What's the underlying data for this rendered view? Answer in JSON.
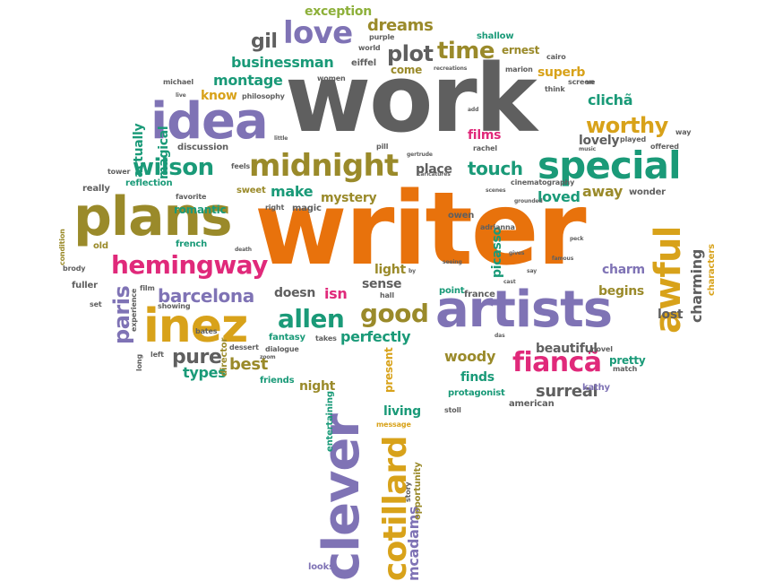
{
  "palette": {
    "gray": "#5f5f5f",
    "orange": "#e8720c",
    "purple": "#7f73b5",
    "green": "#1a9a78",
    "olive": "#9a8a2a",
    "magenta": "#e0297a",
    "gold": "#d8a21a",
    "brown": "#8f6a3a",
    "lime": "#8db03a"
  },
  "words": [
    {
      "text": "work",
      "color": "gray",
      "size": 104
    },
    {
      "text": "writer",
      "color": "orange",
      "size": 112
    },
    {
      "text": "plans",
      "color": "olive",
      "size": 60
    },
    {
      "text": "idea",
      "color": "purple",
      "size": 56
    },
    {
      "text": "artists",
      "color": "purple",
      "size": 56
    },
    {
      "text": "inez",
      "color": "gold",
      "size": 52
    },
    {
      "text": "clever",
      "color": "purple",
      "size": 56
    },
    {
      "text": "special",
      "color": "green",
      "size": 42
    },
    {
      "text": "awful",
      "color": "gold",
      "size": 40
    },
    {
      "text": "midnight",
      "color": "olive",
      "size": 34
    },
    {
      "text": "cotillard",
      "color": "gold",
      "size": 36
    },
    {
      "text": "love",
      "color": "purple",
      "size": 34
    },
    {
      "text": "hemingway",
      "color": "magenta",
      "size": 28
    },
    {
      "text": "fiancã",
      "color": "magenta",
      "size": 30
    },
    {
      "text": "wilson",
      "color": "green",
      "size": 26
    },
    {
      "text": "allen",
      "color": "green",
      "size": 28
    },
    {
      "text": "good",
      "color": "olive",
      "size": 28
    },
    {
      "text": "worthy",
      "color": "gold",
      "size": 24
    },
    {
      "text": "time",
      "color": "olive",
      "size": 26
    },
    {
      "text": "plot",
      "color": "gray",
      "size": 24
    },
    {
      "text": "touch",
      "color": "green",
      "size": 20
    },
    {
      "text": "barcelona",
      "color": "purple",
      "size": 20
    },
    {
      "text": "gil",
      "color": "gray",
      "size": 22
    },
    {
      "text": "pure",
      "color": "gray",
      "size": 22
    },
    {
      "text": "surreal",
      "color": "gray",
      "size": 18
    },
    {
      "text": "businessman",
      "color": "green",
      "size": 16
    },
    {
      "text": "montage",
      "color": "green",
      "size": 16
    },
    {
      "text": "paris",
      "color": "purple",
      "size": 24
    },
    {
      "text": "best",
      "color": "olive",
      "size": 18
    },
    {
      "text": "types",
      "color": "green",
      "size": 16
    },
    {
      "text": "charming",
      "color": "gray",
      "size": 16
    },
    {
      "text": "woody",
      "color": "olive",
      "size": 16
    },
    {
      "text": "mcadams",
      "color": "purple",
      "size": 16
    },
    {
      "text": "dreams",
      "color": "olive",
      "size": 18
    },
    {
      "text": "exception",
      "color": "lime",
      "size": 14
    },
    {
      "text": "place",
      "color": "gray",
      "size": 14
    },
    {
      "text": "make",
      "color": "green",
      "size": 16
    },
    {
      "text": "mystery",
      "color": "olive",
      "size": 14
    },
    {
      "text": "loved",
      "color": "green",
      "size": 16
    },
    {
      "text": "away",
      "color": "olive",
      "size": 16
    },
    {
      "text": "lovely",
      "color": "gray",
      "size": 14
    },
    {
      "text": "films",
      "color": "magenta",
      "size": 14
    },
    {
      "text": "clichã",
      "color": "green",
      "size": 16
    },
    {
      "text": "superb",
      "color": "gold",
      "size": 14
    },
    {
      "text": "know",
      "color": "gold",
      "size": 14
    },
    {
      "text": "actually",
      "color": "green",
      "size": 14
    },
    {
      "text": "magical",
      "color": "green",
      "size": 14
    },
    {
      "text": "doesn",
      "color": "gray",
      "size": 14
    },
    {
      "text": "isn",
      "color": "magenta",
      "size": 16
    },
    {
      "text": "sense",
      "color": "gray",
      "size": 14
    },
    {
      "text": "light",
      "color": "olive",
      "size": 14
    },
    {
      "text": "perfectly",
      "color": "green",
      "size": 16
    },
    {
      "text": "charm",
      "color": "purple",
      "size": 14
    },
    {
      "text": "begins",
      "color": "olive",
      "size": 14
    },
    {
      "text": "lost",
      "color": "gray",
      "size": 14
    },
    {
      "text": "beautiful",
      "color": "gray",
      "size": 14
    },
    {
      "text": "finds",
      "color": "green",
      "size": 14
    },
    {
      "text": "night",
      "color": "olive",
      "size": 14
    },
    {
      "text": "living",
      "color": "green",
      "size": 14
    },
    {
      "text": "present",
      "color": "gold",
      "size": 12
    },
    {
      "text": "picasso",
      "color": "green",
      "size": 14
    },
    {
      "text": "pretty",
      "color": "green",
      "size": 12
    },
    {
      "text": "romantic",
      "color": "green",
      "size": 12
    },
    {
      "text": "come",
      "color": "olive",
      "size": 12
    },
    {
      "text": "director",
      "color": "olive",
      "size": 10
    },
    {
      "text": "ernest",
      "color": "olive",
      "size": 12
    },
    {
      "text": "friends",
      "color": "green",
      "size": 10
    },
    {
      "text": "american",
      "color": "gray",
      "size": 10
    },
    {
      "text": "protagonist",
      "color": "green",
      "size": 10
    },
    {
      "text": "kathy",
      "color": "purple",
      "size": 10
    },
    {
      "text": "looks",
      "color": "purple",
      "size": 10
    },
    {
      "text": "fantasy",
      "color": "green",
      "size": 10
    },
    {
      "text": "entertaining",
      "color": "green",
      "size": 10
    },
    {
      "text": "opportunity",
      "color": "olive",
      "size": 10
    },
    {
      "text": "message",
      "color": "gold",
      "size": 8
    },
    {
      "text": "story",
      "color": "gray",
      "size": 8
    },
    {
      "text": "stoll",
      "color": "gray",
      "size": 8
    },
    {
      "text": "shallow",
      "color": "green",
      "size": 10
    },
    {
      "text": "eiffel",
      "color": "gray",
      "size": 10
    },
    {
      "text": "michael",
      "color": "gray",
      "size": 8
    },
    {
      "text": "women",
      "color": "gray",
      "size": 8
    },
    {
      "text": "philosophy",
      "color": "gray",
      "size": 8
    },
    {
      "text": "discussion",
      "color": "gray",
      "size": 10
    },
    {
      "text": "reflection",
      "color": "green",
      "size": 10
    },
    {
      "text": "really",
      "color": "gray",
      "size": 10
    },
    {
      "text": "tower",
      "color": "gray",
      "size": 8
    },
    {
      "text": "sweet",
      "color": "olive",
      "size": 10
    },
    {
      "text": "magic",
      "color": "gray",
      "size": 10
    },
    {
      "text": "right",
      "color": "gray",
      "size": 8
    },
    {
      "text": "favorite",
      "color": "gray",
      "size": 8
    },
    {
      "text": "condition",
      "color": "olive",
      "size": 8
    },
    {
      "text": "old",
      "color": "olive",
      "size": 10
    },
    {
      "text": "french",
      "color": "green",
      "size": 10
    },
    {
      "text": "brody",
      "color": "gray",
      "size": 8
    },
    {
      "text": "fuller",
      "color": "gray",
      "size": 10
    },
    {
      "text": "set",
      "color": "gray",
      "size": 8
    },
    {
      "text": "film",
      "color": "gray",
      "size": 8
    },
    {
      "text": "experience",
      "color": "gray",
      "size": 8
    },
    {
      "text": "showing",
      "color": "gray",
      "size": 8
    },
    {
      "text": "bates",
      "color": "gray",
      "size": 8
    },
    {
      "text": "left",
      "color": "gray",
      "size": 8
    },
    {
      "text": "long",
      "color": "gray",
      "size": 8
    },
    {
      "text": "dessert",
      "color": "gray",
      "size": 8
    },
    {
      "text": "dialogue",
      "color": "gray",
      "size": 8
    },
    {
      "text": "zoom",
      "color": "gray",
      "size": 6
    },
    {
      "text": "takes",
      "color": "gray",
      "size": 8
    },
    {
      "text": "hall",
      "color": "gray",
      "size": 8
    },
    {
      "text": "point",
      "color": "green",
      "size": 10
    },
    {
      "text": "france",
      "color": "gray",
      "size": 10
    },
    {
      "text": "owen",
      "color": "gray",
      "size": 10
    },
    {
      "text": "adrianna",
      "color": "gray",
      "size": 8
    },
    {
      "text": "scenes",
      "color": "gray",
      "size": 6
    },
    {
      "text": "grounded",
      "color": "gray",
      "size": 6
    },
    {
      "text": "cinematography",
      "color": "gray",
      "size": 8
    },
    {
      "text": "wonder",
      "color": "gray",
      "size": 10
    },
    {
      "text": "famous",
      "color": "gray",
      "size": 6
    },
    {
      "text": "novel",
      "color": "gray",
      "size": 8
    },
    {
      "text": "match",
      "color": "gray",
      "size": 8
    },
    {
      "text": "characters",
      "color": "gold",
      "size": 10
    },
    {
      "text": "think",
      "color": "gray",
      "size": 8
    },
    {
      "text": "screen",
      "color": "gray",
      "size": 8
    },
    {
      "text": "cairo",
      "color": "gray",
      "size": 8
    },
    {
      "text": "marion",
      "color": "gray",
      "size": 8
    },
    {
      "text": "recreations",
      "color": "gray",
      "size": 6
    },
    {
      "text": "purple",
      "color": "gray",
      "size": 8
    },
    {
      "text": "world",
      "color": "gray",
      "size": 8
    },
    {
      "text": "played",
      "color": "gray",
      "size": 8
    },
    {
      "text": "offered",
      "color": "gray",
      "size": 8
    },
    {
      "text": "way",
      "color": "gray",
      "size": 8
    },
    {
      "text": "music",
      "color": "gray",
      "size": 6
    },
    {
      "text": "gertrude",
      "color": "gray",
      "size": 6
    },
    {
      "text": "caricatures",
      "color": "gray",
      "size": 6
    },
    {
      "text": "pill",
      "color": "gray",
      "size": 8
    },
    {
      "text": "feels",
      "color": "gray",
      "size": 8
    },
    {
      "text": "little",
      "color": "gray",
      "size": 6
    },
    {
      "text": "rachel",
      "color": "gray",
      "size": 8
    },
    {
      "text": "add",
      "color": "gray",
      "size": 6
    },
    {
      "text": "live",
      "color": "gray",
      "size": 6
    },
    {
      "text": "death",
      "color": "gray",
      "size": 6
    },
    {
      "text": "ve",
      "color": "gray",
      "size": 8
    },
    {
      "text": "cast",
      "color": "gray",
      "size": 6
    },
    {
      "text": "seeing",
      "color": "gray",
      "size": 6
    },
    {
      "text": "peck",
      "color": "gray",
      "size": 6
    },
    {
      "text": "gives",
      "color": "gray",
      "size": 6
    },
    {
      "text": "say",
      "color": "gray",
      "size": 6
    },
    {
      "text": "das",
      "color": "gray",
      "size": 6
    },
    {
      "text": "by",
      "color": "gray",
      "size": 6
    }
  ]
}
